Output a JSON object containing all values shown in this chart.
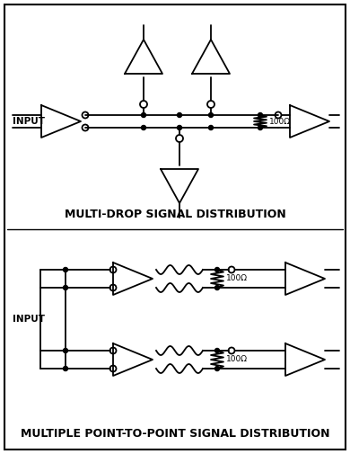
{
  "bg_color": "#ffffff",
  "line_color": "#000000",
  "title1": "MULTI-DROP SIGNAL DISTRIBUTION",
  "title2": "MULTIPLE POINT-TO-POINT SIGNAL DISTRIBUTION",
  "resistor_label": "100Ω",
  "input_label": "INPUT",
  "fig_width": 3.9,
  "fig_height": 5.05,
  "dpi": 100
}
